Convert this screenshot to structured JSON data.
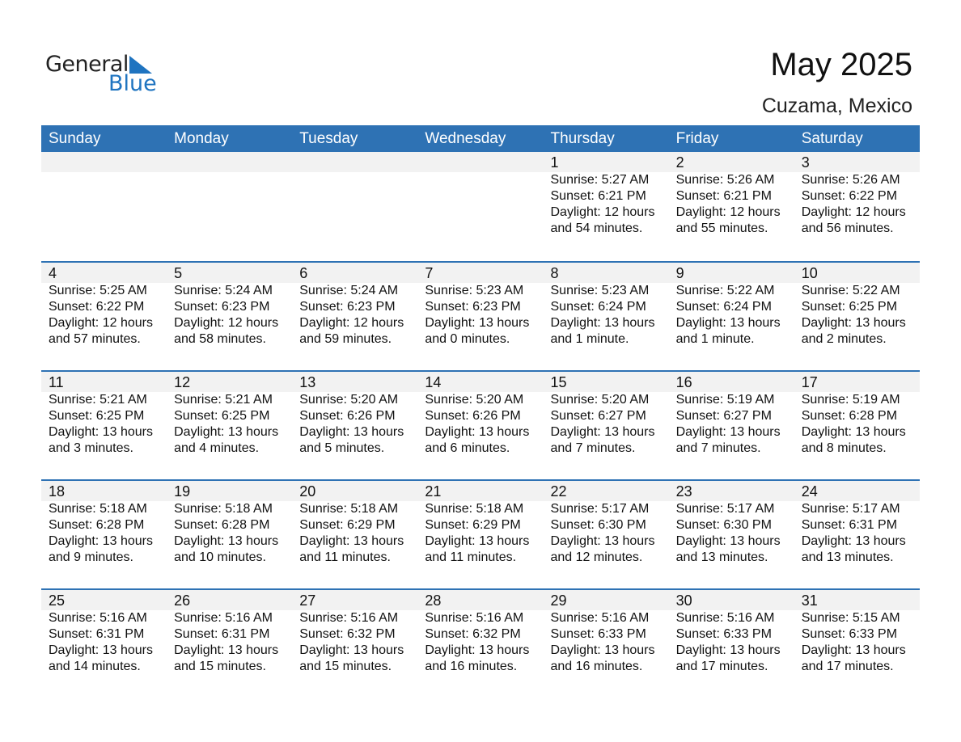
{
  "logo": {
    "word1": "General",
    "word2": "Blue"
  },
  "title": "May 2025",
  "location": "Cuzama, Mexico",
  "days": [
    "Sunday",
    "Monday",
    "Tuesday",
    "Wednesday",
    "Thursday",
    "Friday",
    "Saturday"
  ],
  "weeks": [
    [
      null,
      null,
      null,
      null,
      {
        "day": "1",
        "sunrise": "Sunrise: 5:27 AM",
        "sunset": "Sunset: 6:21 PM",
        "daylight": "Daylight: 12 hours",
        "minutes": "and 54 minutes."
      },
      {
        "day": "2",
        "sunrise": "Sunrise: 5:26 AM",
        "sunset": "Sunset: 6:21 PM",
        "daylight": "Daylight: 12 hours",
        "minutes": "and 55 minutes."
      },
      {
        "day": "3",
        "sunrise": "Sunrise: 5:26 AM",
        "sunset": "Sunset: 6:22 PM",
        "daylight": "Daylight: 12 hours",
        "minutes": "and 56 minutes."
      }
    ],
    [
      {
        "day": "4",
        "sunrise": "Sunrise: 5:25 AM",
        "sunset": "Sunset: 6:22 PM",
        "daylight": "Daylight: 12 hours",
        "minutes": "and 57 minutes."
      },
      {
        "day": "5",
        "sunrise": "Sunrise: 5:24 AM",
        "sunset": "Sunset: 6:23 PM",
        "daylight": "Daylight: 12 hours",
        "minutes": "and 58 minutes."
      },
      {
        "day": "6",
        "sunrise": "Sunrise: 5:24 AM",
        "sunset": "Sunset: 6:23 PM",
        "daylight": "Daylight: 12 hours",
        "minutes": "and 59 minutes."
      },
      {
        "day": "7",
        "sunrise": "Sunrise: 5:23 AM",
        "sunset": "Sunset: 6:23 PM",
        "daylight": "Daylight: 13 hours",
        "minutes": "and 0 minutes."
      },
      {
        "day": "8",
        "sunrise": "Sunrise: 5:23 AM",
        "sunset": "Sunset: 6:24 PM",
        "daylight": "Daylight: 13 hours",
        "minutes": "and 1 minute."
      },
      {
        "day": "9",
        "sunrise": "Sunrise: 5:22 AM",
        "sunset": "Sunset: 6:24 PM",
        "daylight": "Daylight: 13 hours",
        "minutes": "and 1 minute."
      },
      {
        "day": "10",
        "sunrise": "Sunrise: 5:22 AM",
        "sunset": "Sunset: 6:25 PM",
        "daylight": "Daylight: 13 hours",
        "minutes": "and 2 minutes."
      }
    ],
    [
      {
        "day": "11",
        "sunrise": "Sunrise: 5:21 AM",
        "sunset": "Sunset: 6:25 PM",
        "daylight": "Daylight: 13 hours",
        "minutes": "and 3 minutes."
      },
      {
        "day": "12",
        "sunrise": "Sunrise: 5:21 AM",
        "sunset": "Sunset: 6:25 PM",
        "daylight": "Daylight: 13 hours",
        "minutes": "and 4 minutes."
      },
      {
        "day": "13",
        "sunrise": "Sunrise: 5:20 AM",
        "sunset": "Sunset: 6:26 PM",
        "daylight": "Daylight: 13 hours",
        "minutes": "and 5 minutes."
      },
      {
        "day": "14",
        "sunrise": "Sunrise: 5:20 AM",
        "sunset": "Sunset: 6:26 PM",
        "daylight": "Daylight: 13 hours",
        "minutes": "and 6 minutes."
      },
      {
        "day": "15",
        "sunrise": "Sunrise: 5:20 AM",
        "sunset": "Sunset: 6:27 PM",
        "daylight": "Daylight: 13 hours",
        "minutes": "and 7 minutes."
      },
      {
        "day": "16",
        "sunrise": "Sunrise: 5:19 AM",
        "sunset": "Sunset: 6:27 PM",
        "daylight": "Daylight: 13 hours",
        "minutes": "and 7 minutes."
      },
      {
        "day": "17",
        "sunrise": "Sunrise: 5:19 AM",
        "sunset": "Sunset: 6:28 PM",
        "daylight": "Daylight: 13 hours",
        "minutes": "and 8 minutes."
      }
    ],
    [
      {
        "day": "18",
        "sunrise": "Sunrise: 5:18 AM",
        "sunset": "Sunset: 6:28 PM",
        "daylight": "Daylight: 13 hours",
        "minutes": "and 9 minutes."
      },
      {
        "day": "19",
        "sunrise": "Sunrise: 5:18 AM",
        "sunset": "Sunset: 6:28 PM",
        "daylight": "Daylight: 13 hours",
        "minutes": "and 10 minutes."
      },
      {
        "day": "20",
        "sunrise": "Sunrise: 5:18 AM",
        "sunset": "Sunset: 6:29 PM",
        "daylight": "Daylight: 13 hours",
        "minutes": "and 11 minutes."
      },
      {
        "day": "21",
        "sunrise": "Sunrise: 5:18 AM",
        "sunset": "Sunset: 6:29 PM",
        "daylight": "Daylight: 13 hours",
        "minutes": "and 11 minutes."
      },
      {
        "day": "22",
        "sunrise": "Sunrise: 5:17 AM",
        "sunset": "Sunset: 6:30 PM",
        "daylight": "Daylight: 13 hours",
        "minutes": "and 12 minutes."
      },
      {
        "day": "23",
        "sunrise": "Sunrise: 5:17 AM",
        "sunset": "Sunset: 6:30 PM",
        "daylight": "Daylight: 13 hours",
        "minutes": "and 13 minutes."
      },
      {
        "day": "24",
        "sunrise": "Sunrise: 5:17 AM",
        "sunset": "Sunset: 6:31 PM",
        "daylight": "Daylight: 13 hours",
        "minutes": "and 13 minutes."
      }
    ],
    [
      {
        "day": "25",
        "sunrise": "Sunrise: 5:16 AM",
        "sunset": "Sunset: 6:31 PM",
        "daylight": "Daylight: 13 hours",
        "minutes": "and 14 minutes."
      },
      {
        "day": "26",
        "sunrise": "Sunrise: 5:16 AM",
        "sunset": "Sunset: 6:31 PM",
        "daylight": "Daylight: 13 hours",
        "minutes": "and 15 minutes."
      },
      {
        "day": "27",
        "sunrise": "Sunrise: 5:16 AM",
        "sunset": "Sunset: 6:32 PM",
        "daylight": "Daylight: 13 hours",
        "minutes": "and 15 minutes."
      },
      {
        "day": "28",
        "sunrise": "Sunrise: 5:16 AM",
        "sunset": "Sunset: 6:32 PM",
        "daylight": "Daylight: 13 hours",
        "minutes": "and 16 minutes."
      },
      {
        "day": "29",
        "sunrise": "Sunrise: 5:16 AM",
        "sunset": "Sunset: 6:33 PM",
        "daylight": "Daylight: 13 hours",
        "minutes": "and 16 minutes."
      },
      {
        "day": "30",
        "sunrise": "Sunrise: 5:16 AM",
        "sunset": "Sunset: 6:33 PM",
        "daylight": "Daylight: 13 hours",
        "minutes": "and 17 minutes."
      },
      {
        "day": "31",
        "sunrise": "Sunrise: 5:15 AM",
        "sunset": "Sunset: 6:33 PM",
        "daylight": "Daylight: 13 hours",
        "minutes": "and 17 minutes."
      }
    ]
  ]
}
